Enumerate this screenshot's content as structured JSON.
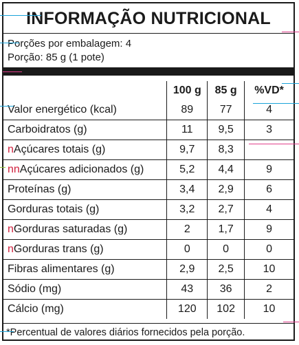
{
  "title": "INFORMAÇÃO NUTRICIONAL",
  "servings_per_package": "Porções por embalagem: 4",
  "serving_size": "Porção: 85 g (1 pote)",
  "table": {
    "headers": [
      "",
      "100 g",
      "85 g",
      "%VD*"
    ],
    "rows": [
      {
        "label": "Valor energético (kcal)",
        "v100": "89",
        "v85": "77",
        "vd": "4"
      },
      {
        "label": "Carboidratos (g)",
        "v100": "11",
        "v85": "9,5",
        "vd": "3"
      },
      {
        "prefix": "n",
        "label": "Açúcares totais (g)",
        "v100": "9,7",
        "v85": "8,3",
        "vd": ""
      },
      {
        "prefix": "nn",
        "label": "Açúcares adicionados (g)",
        "v100": "5,2",
        "v85": "4,4",
        "vd": "9"
      },
      {
        "label": "Proteínas (g)",
        "v100": "3,4",
        "v85": "2,9",
        "vd": "6"
      },
      {
        "label": "Gorduras totais (g)",
        "v100": "3,2",
        "v85": "2,7",
        "vd": "4"
      },
      {
        "prefix": "n",
        "label": "Gorduras saturadas (g)",
        "v100": "2",
        "v85": "1,7",
        "vd": "9"
      },
      {
        "prefix": "n",
        "label": "Gorduras trans (g)",
        "v100": "0",
        "v85": "0",
        "vd": "0"
      },
      {
        "label": "Fibras alimentares (g)",
        "v100": "2,9",
        "v85": "2,5",
        "vd": "10"
      },
      {
        "label": "Sódio (mg)",
        "v100": "43",
        "v85": "36",
        "vd": "2"
      },
      {
        "label": "Cálcio (mg)",
        "v100": "120",
        "v85": "102",
        "vd": "10"
      }
    ]
  },
  "footnote": "*Percentual de valores diários fornecidos pela porção.",
  "colors": {
    "text": "#1a1a1a",
    "annotation": "#1aa3d9",
    "prefix_mark": "#d01f3c"
  }
}
